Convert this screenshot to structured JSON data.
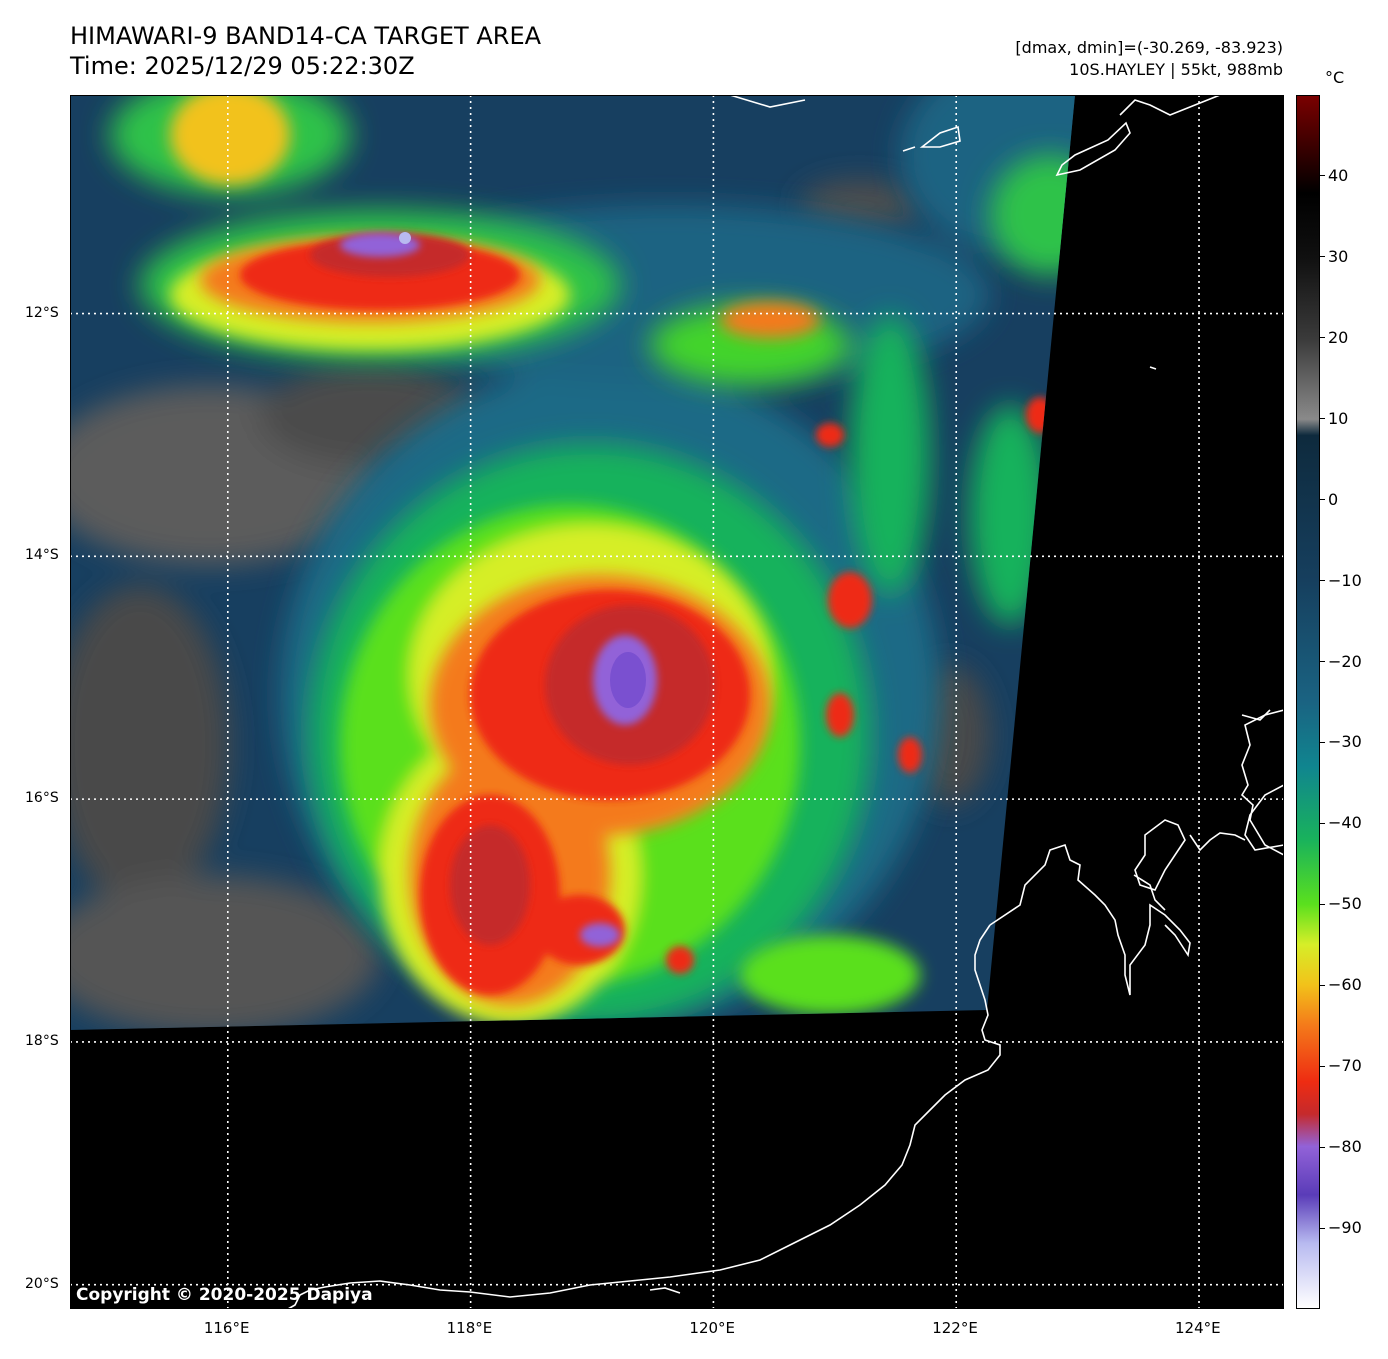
{
  "title": {
    "line1": "HIMAWARI-9 BAND14-CA TARGET AREA",
    "line2": "Time: 2025/12/29 05:22:30Z"
  },
  "info": {
    "range": "[dmax, dmin]=(-30.269, -83.923)",
    "storm": "10S.HAYLEY | 55kt, 988mb"
  },
  "copyright": "Copyright © 2020-2025 Dapiya",
  "map": {
    "lon_range": [
      114.7,
      124.7
    ],
    "lat_range": [
      -20.2,
      -10.2
    ],
    "lon_ticks": [
      "116°E",
      "118°E",
      "120°E",
      "122°E",
      "124°E"
    ],
    "lon_values": [
      116,
      118,
      120,
      122,
      124
    ],
    "lat_ticks": [
      "12°S",
      "14°S",
      "16°S",
      "18°S",
      "20°S"
    ],
    "lat_values": [
      -12,
      -14,
      -16,
      -18,
      -20
    ],
    "gridlines": "dotted white",
    "coastline_color": "#ffffff",
    "no_data_color": "#000000",
    "storm_center": {
      "lon": 119.1,
      "lat": -15.0
    }
  },
  "colorbar": {
    "unit": "°C",
    "range": [
      -100,
      50
    ],
    "ticks": [
      "40",
      "30",
      "20",
      "10",
      "0",
      "−10",
      "−20",
      "−30",
      "−40",
      "−50",
      "−60",
      "−70",
      "−80",
      "−90"
    ],
    "tick_values": [
      40,
      30,
      20,
      10,
      0,
      -10,
      -20,
      -30,
      -40,
      -50,
      -60,
      -70,
      -80,
      -90
    ],
    "stops": [
      {
        "v": 50,
        "c": "#7a0000"
      },
      {
        "v": 38,
        "c": "#000000"
      },
      {
        "v": 30,
        "c": "#101010"
      },
      {
        "v": 20,
        "c": "#3a3a3a"
      },
      {
        "v": 10,
        "c": "#8a8a8a"
      },
      {
        "v": 8,
        "c": "#0e2a3d"
      },
      {
        "v": -10,
        "c": "#163f5e"
      },
      {
        "v": -25,
        "c": "#1a6382"
      },
      {
        "v": -33,
        "c": "#10858f"
      },
      {
        "v": -42,
        "c": "#19b25c"
      },
      {
        "v": -50,
        "c": "#5ae01e"
      },
      {
        "v": -55,
        "c": "#d6ee28"
      },
      {
        "v": -60,
        "c": "#f2c21a"
      },
      {
        "v": -65,
        "c": "#f47a1a"
      },
      {
        "v": -72,
        "c": "#ee2c12"
      },
      {
        "v": -76,
        "c": "#c52a2c"
      },
      {
        "v": -80,
        "c": "#9262d8"
      },
      {
        "v": -86,
        "c": "#5a3cb8"
      },
      {
        "v": -92,
        "c": "#b8baf0"
      },
      {
        "v": -100,
        "c": "#ffffff"
      }
    ]
  }
}
